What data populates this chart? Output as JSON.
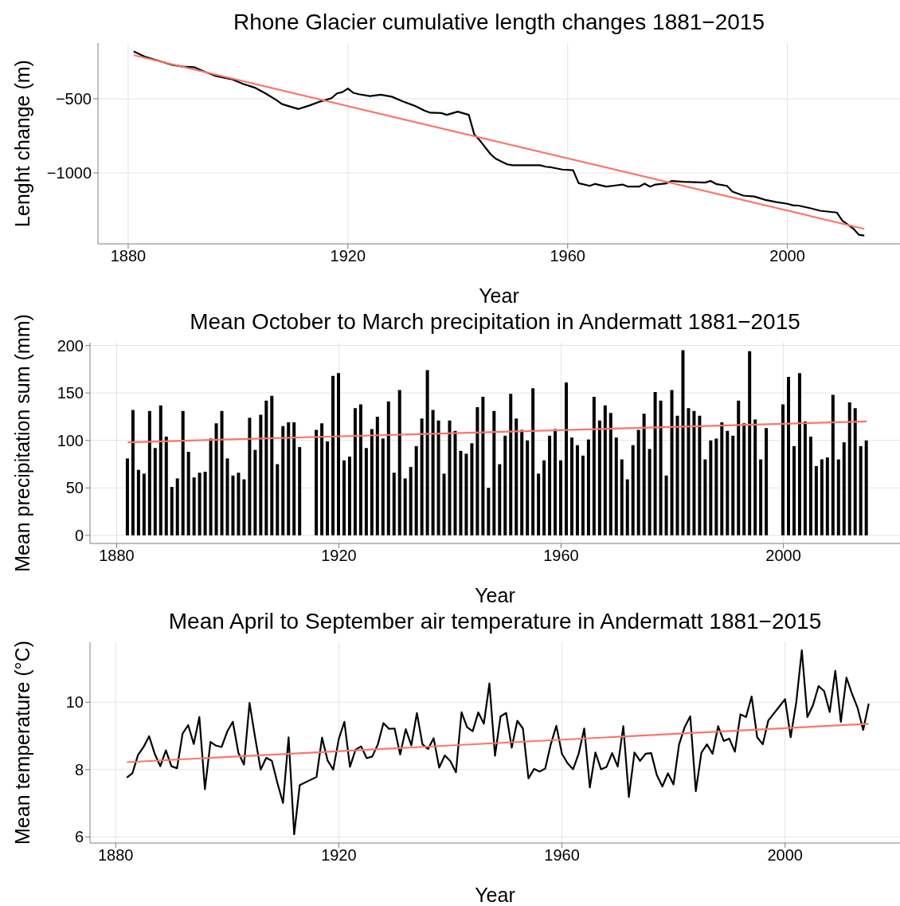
{
  "chart_data": [
    {
      "type": "line",
      "title": "Rhone Glacier cumulative length changes 1881−2015",
      "xlabel": "Year",
      "ylabel": "Lenght change (m)",
      "xlim": [
        1874.5,
        2020.5
      ],
      "xticks": [
        1880,
        1920,
        1960,
        2000
      ],
      "ylim": [
        -1478,
        -124
      ],
      "yticks": [
        -1000,
        -500
      ],
      "grid": true,
      "series": [
        {
          "color": "#000000",
          "x": [
            1881,
            1883,
            1885,
            1888,
            1890,
            1892,
            1894,
            1896,
            1899,
            1901,
            1903,
            1905,
            1907,
            1908,
            1911,
            1913,
            1915,
            1917,
            1918,
            1919,
            1920,
            1921,
            1922,
            1924,
            1926,
            1928,
            1930,
            1932,
            1934,
            1935,
            1937,
            1938,
            1940,
            1942,
            1943,
            1944,
            1946,
            1947,
            1949,
            1950,
            1955,
            1956,
            1957,
            1959,
            1961,
            1962,
            1964,
            1965,
            1967,
            1969,
            1970,
            1971,
            1973,
            1974,
            1975,
            1976,
            1978,
            1979,
            1981,
            1985,
            1986,
            1987,
            1989,
            1990,
            1992,
            1994,
            1996,
            1998,
            2000,
            2001,
            2002,
            2004,
            2006,
            2009,
            2010,
            2012,
            2013,
            2014
          ],
          "values": [
            -181,
            -215,
            -238,
            -271,
            -283,
            -287,
            -319,
            -347,
            -370,
            -401,
            -424,
            -464,
            -509,
            -536,
            -569,
            -545,
            -518,
            -496,
            -464,
            -455,
            -431,
            -460,
            -469,
            -482,
            -473,
            -486,
            -518,
            -545,
            -581,
            -594,
            -596,
            -608,
            -587,
            -608,
            -740,
            -780,
            -875,
            -906,
            -942,
            -948,
            -948,
            -958,
            -962,
            -977,
            -982,
            -1069,
            -1087,
            -1074,
            -1092,
            -1083,
            -1078,
            -1092,
            -1092,
            -1072,
            -1092,
            -1078,
            -1070,
            -1054,
            -1060,
            -1065,
            -1054,
            -1074,
            -1087,
            -1126,
            -1153,
            -1159,
            -1182,
            -1197,
            -1208,
            -1218,
            -1220,
            -1236,
            -1255,
            -1267,
            -1321,
            -1375,
            -1417,
            -1422
          ]
        },
        {
          "type": "line",
          "color": "#f8766d",
          "x": [
            1881,
            2014
          ],
          "values": [
            -206,
            -1377
          ]
        }
      ]
    },
    {
      "type": "bar",
      "title": "Mean October to March precipitation in Andermatt 1881−2015",
      "xlabel": "Year",
      "ylabel": "Mean precipitation sum (mm)",
      "xlim": [
        1875.2,
        2021
      ],
      "xticks": [
        1880,
        1920,
        1960,
        2000
      ],
      "ylim": [
        -8.5,
        203
      ],
      "yticks": [
        0,
        50,
        100,
        150,
        200
      ],
      "grid": true,
      "series": [
        {
          "color": "#000000",
          "x": [
            1882,
            1883,
            1884,
            1885,
            1886,
            1887,
            1888,
            1889,
            1890,
            1891,
            1892,
            1893,
            1894,
            1895,
            1896,
            1897,
            1898,
            1899,
            1900,
            1901,
            1902,
            1903,
            1904,
            1905,
            1906,
            1907,
            1908,
            1909,
            1910,
            1911,
            1912,
            1913,
            1916,
            1917,
            1918,
            1919,
            1920,
            1921,
            1922,
            1923,
            1924,
            1925,
            1926,
            1927,
            1928,
            1929,
            1930,
            1931,
            1932,
            1933,
            1934,
            1935,
            1936,
            1937,
            1938,
            1939,
            1940,
            1941,
            1942,
            1943,
            1944,
            1945,
            1946,
            1947,
            1948,
            1949,
            1950,
            1951,
            1952,
            1953,
            1954,
            1955,
            1956,
            1957,
            1958,
            1959,
            1960,
            1961,
            1962,
            1963,
            1964,
            1965,
            1966,
            1967,
            1968,
            1969,
            1970,
            1971,
            1972,
            1973,
            1974,
            1975,
            1976,
            1977,
            1978,
            1979,
            1980,
            1981,
            1982,
            1983,
            1984,
            1985,
            1986,
            1987,
            1988,
            1989,
            1990,
            1991,
            1992,
            1993,
            1994,
            1995,
            1996,
            1997,
            2000,
            2001,
            2002,
            2003,
            2004,
            2005,
            2006,
            2007,
            2008,
            2009,
            2010,
            2011,
            2012,
            2013,
            2014,
            2015
          ],
          "values": [
            81,
            132,
            69,
            65,
            131,
            92,
            137,
            104,
            51,
            60,
            131,
            88,
            61,
            66,
            67,
            102,
            118,
            131,
            81,
            63,
            66,
            59,
            124,
            90,
            127,
            142,
            147,
            75,
            115,
            119,
            119,
            93,
            111,
            118,
            99,
            168,
            171,
            79,
            83,
            134,
            138,
            92,
            112,
            125,
            102,
            141,
            66,
            153,
            60,
            72,
            94,
            123,
            174,
            132,
            121,
            65,
            121,
            110,
            89,
            86,
            97,
            135,
            146,
            50,
            131,
            75,
            105,
            149,
            123,
            111,
            100,
            155,
            65,
            79,
            105,
            112,
            79,
            161,
            103,
            95,
            84,
            101,
            146,
            121,
            137,
            129,
            103,
            80,
            59,
            95,
            111,
            128,
            91,
            151,
            142,
            63,
            153,
            126,
            195,
            134,
            131,
            126,
            80,
            100,
            102,
            119,
            110,
            105,
            142,
            118,
            194,
            122,
            80,
            113,
            138,
            167,
            94,
            171,
            120,
            104,
            73,
            80,
            82,
            148,
            80,
            98,
            140,
            134,
            94,
            100
          ]
        },
        {
          "type": "line",
          "color": "#f8766d",
          "x": [
            1882,
            2015
          ],
          "values": [
            98,
            120
          ]
        }
      ]
    },
    {
      "type": "line",
      "title": "Mean April to September air temperature in Andermatt 1881−2015",
      "xlabel": "Year",
      "ylabel": "Mean temperature (°C)",
      "xlim": [
        1875.4,
        2020.6
      ],
      "xticks": [
        1880,
        1920,
        1960,
        2000
      ],
      "ylim": [
        5.82,
        11.78
      ],
      "yticks": [
        6,
        8,
        10
      ],
      "grid": true,
      "series": [
        {
          "color": "#000000",
          "x": [
            1882,
            1883,
            1884,
            1885,
            1886,
            1887,
            1888,
            1889,
            1890,
            1891,
            1892,
            1893,
            1894,
            1895,
            1896,
            1897,
            1898,
            1899,
            1900,
            1901,
            1902,
            1903,
            1904,
            1905,
            1906,
            1907,
            1908,
            1909,
            1910,
            1911,
            1912,
            1913,
            1916,
            1917,
            1918,
            1919,
            1920,
            1921,
            1922,
            1923,
            1924,
            1925,
            1926,
            1927,
            1928,
            1929,
            1930,
            1931,
            1932,
            1933,
            1934,
            1935,
            1936,
            1937,
            1938,
            1939,
            1940,
            1941,
            1942,
            1943,
            1944,
            1945,
            1946,
            1947,
            1948,
            1949,
            1950,
            1951,
            1952,
            1953,
            1954,
            1955,
            1956,
            1957,
            1958,
            1959,
            1960,
            1961,
            1962,
            1963,
            1964,
            1965,
            1966,
            1967,
            1968,
            1969,
            1970,
            1971,
            1972,
            1973,
            1974,
            1975,
            1976,
            1977,
            1978,
            1979,
            1980,
            1981,
            1982,
            1983,
            1984,
            1985,
            1986,
            1987,
            1988,
            1989,
            1990,
            1991,
            1992,
            1993,
            1994,
            1995,
            1996,
            1997,
            2000,
            2001,
            2002,
            2003,
            2004,
            2005,
            2006,
            2007,
            2008,
            2009,
            2010,
            2011,
            2012,
            2013,
            2014,
            2015
          ],
          "values": [
            7.76,
            7.89,
            8.43,
            8.67,
            8.99,
            8.47,
            8.1,
            8.57,
            8.1,
            8.04,
            9.07,
            9.32,
            8.76,
            9.56,
            7.42,
            8.82,
            8.71,
            8.67,
            9.13,
            9.42,
            8.5,
            8.15,
            9.98,
            8.95,
            8.0,
            8.35,
            8.26,
            7.6,
            7.01,
            8.96,
            6.08,
            7.54,
            7.78,
            8.95,
            8.27,
            8.0,
            8.91,
            9.42,
            8.08,
            8.59,
            8.69,
            8.34,
            8.39,
            8.75,
            9.38,
            9.21,
            9.22,
            8.45,
            9.2,
            8.72,
            9.68,
            8.75,
            8.61,
            8.93,
            8.06,
            8.42,
            8.25,
            7.92,
            9.7,
            9.26,
            9.14,
            9.7,
            9.36,
            10.56,
            8.41,
            9.58,
            9.68,
            8.65,
            9.45,
            9.22,
            7.74,
            8.02,
            7.94,
            8.03,
            8.75,
            9.3,
            8.47,
            8.19,
            8.01,
            8.47,
            9.22,
            7.47,
            8.51,
            8.01,
            8.08,
            8.49,
            8.09,
            9.29,
            7.19,
            8.51,
            8.26,
            8.47,
            8.49,
            7.84,
            7.5,
            7.89,
            7.56,
            8.75,
            9.26,
            9.58,
            7.36,
            8.5,
            8.75,
            8.47,
            9.29,
            8.85,
            8.92,
            8.53,
            9.64,
            9.56,
            10.17,
            8.96,
            8.75,
            9.46,
            10.09,
            8.96,
            9.99,
            11.54,
            9.56,
            9.91,
            10.48,
            10.33,
            9.71,
            10.93,
            9.42,
            10.73,
            10.25,
            9.83,
            9.18,
            9.96
          ]
        },
        {
          "type": "line",
          "color": "#f8766d",
          "x": [
            1882,
            2015
          ],
          "values": [
            8.22,
            9.36
          ]
        }
      ]
    }
  ]
}
